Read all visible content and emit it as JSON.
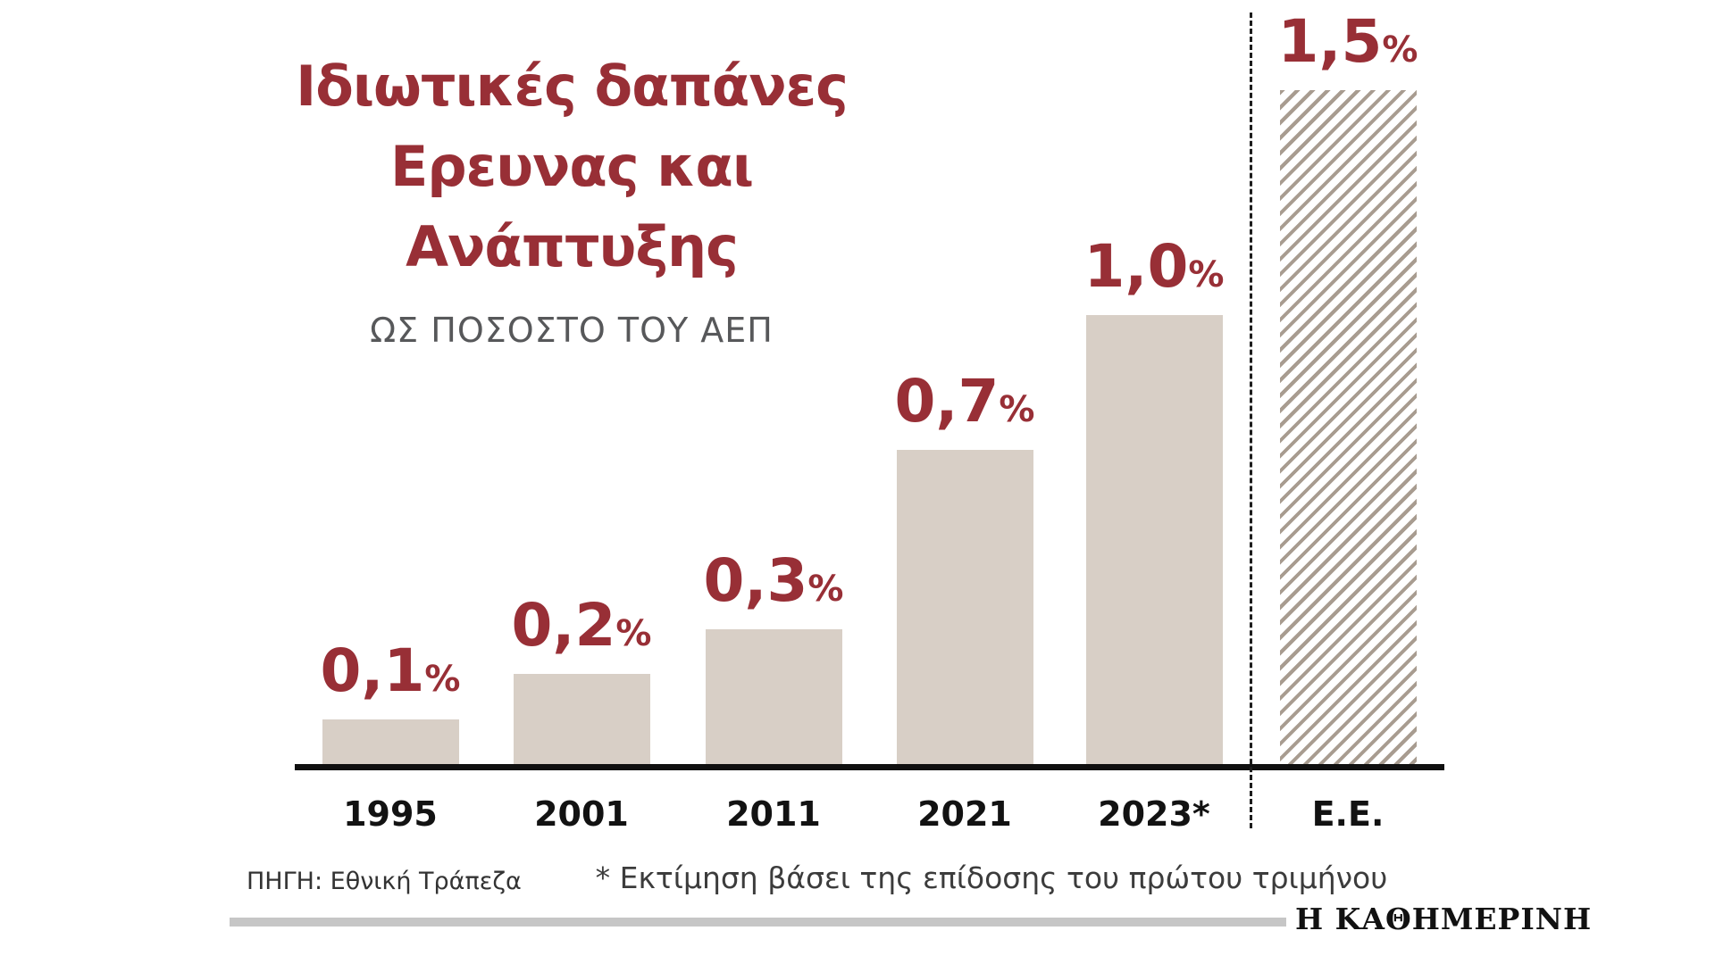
{
  "chart_data": {
    "type": "bar",
    "title": "Ιδιωτικές δαπάνες Ερευνας και Ανάπτυξης",
    "title_lines": [
      "Ιδιωτικές δαπάνες",
      "Ερευνας και",
      "Ανάπτυξης"
    ],
    "subtitle": "ΩΣ ΠΟΣΟΣΤΟ ΤΟΥ ΑΕΠ",
    "categories": [
      "1995",
      "2001",
      "2011",
      "2021",
      "2023*",
      "Ε.Ε."
    ],
    "values": [
      0.1,
      0.2,
      0.3,
      0.7,
      1.0,
      1.5
    ],
    "value_labels": [
      "0,1",
      "0,2",
      "0,3",
      "0,7",
      "1,0",
      "1,5"
    ],
    "percent_sign": "%",
    "ylim": [
      0,
      1.6
    ],
    "grid": false,
    "legend": false,
    "hatched_category": "Ε.Ε.",
    "colors": {
      "bar": "#d8cfc6",
      "accent": "#982f36",
      "axis": "#121212",
      "subtitle_gray": "#57585a"
    }
  },
  "footer": {
    "source": "ΠΗΓΗ: Εθνική Τράπεζα",
    "footnote": "* Εκτίμηση βάσει της επίδοσης του πρώτου τριμήνου",
    "brand": "Η ΚΑΘΗΜΕΡΙΝΗ"
  }
}
